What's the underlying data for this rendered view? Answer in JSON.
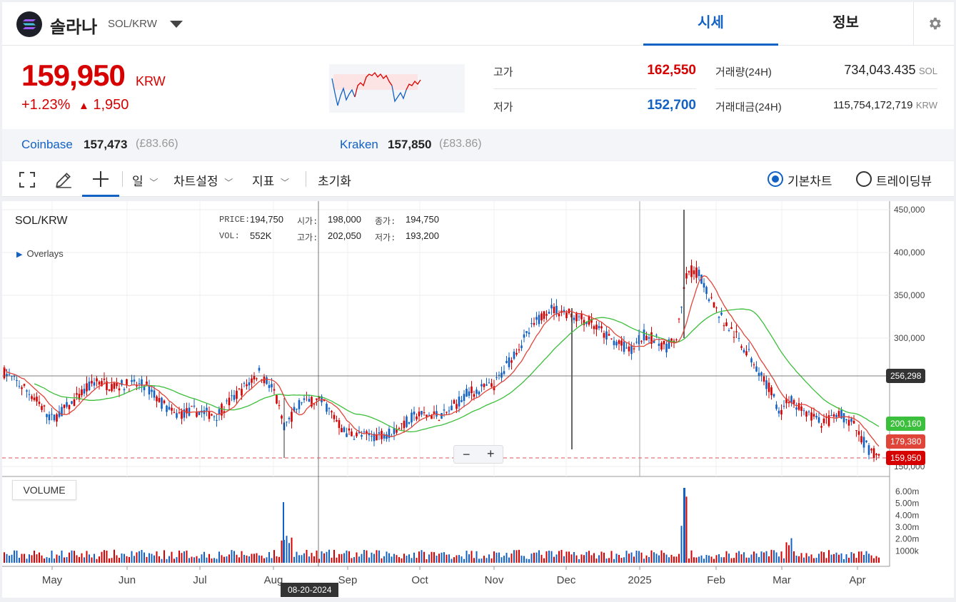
{
  "header": {
    "coin_name": "솔라나",
    "pair": "SOL/KRW",
    "tabs": [
      "시세",
      "정보"
    ]
  },
  "summary": {
    "price": "159,950",
    "unit": "KRW",
    "change_pct": "+1.23%",
    "change_amt": "1,950",
    "high_label": "고가",
    "high_value": "162,550",
    "low_label": "저가",
    "low_value": "152,700",
    "volume_label": "거래량(24H)",
    "volume_value": "734,043.435",
    "volume_unit": "SOL",
    "amount_label": "거래대금(24H)",
    "amount_value": "115,754,172,719",
    "amount_unit": "KRW"
  },
  "exchanges": [
    {
      "name": "Coinbase",
      "price": "157,473",
      "sub": "(£83.66)"
    },
    {
      "name": "Kraken",
      "price": "157,850",
      "sub": "(£83.86)"
    }
  ],
  "toolbar": {
    "interval": "일",
    "chart_settings": "차트설정",
    "indicators": "지표",
    "reset": "초기화",
    "basic_chart": "기본차트",
    "tradingview": "트레이딩뷰"
  },
  "chart": {
    "symbol": "SOL/KRW",
    "overlays": "Overlays",
    "legend": {
      "price_label": "PRICE:",
      "price": "194,750",
      "open_label": "시가:",
      "open": "198,000",
      "close_label": "종가:",
      "close": "194,750",
      "vol_label": "VOL:",
      "vol": "552K",
      "high_label": "고가:",
      "high": "202,050",
      "low_label": "저가:",
      "low": "193,200"
    },
    "y_ticks": [
      "450,000",
      "400,000",
      "350,000",
      "300,000",
      "150,000"
    ],
    "x_ticks": [
      "May",
      "Jun",
      "Jul",
      "Aug",
      "Sep",
      "Oct",
      "Nov",
      "Dec",
      "2025",
      "Feb",
      "Mar",
      "Apr"
    ],
    "crosshair_price": "256,298",
    "crosshair_date": "08-20-2024",
    "ma_long_tag": "200,160",
    "ma_short_tag": "179,380",
    "last_price_tag": "159,950",
    "volume_label": "VOLUME",
    "volume_ticks": [
      "6.00m",
      "5.00m",
      "4.00m",
      "3.00m",
      "2.00m",
      "1000k"
    ],
    "colors": {
      "up": "#d60000",
      "down": "#1261c4",
      "ma_short": "#e0453a",
      "ma_long": "#3cbf3c"
    }
  }
}
